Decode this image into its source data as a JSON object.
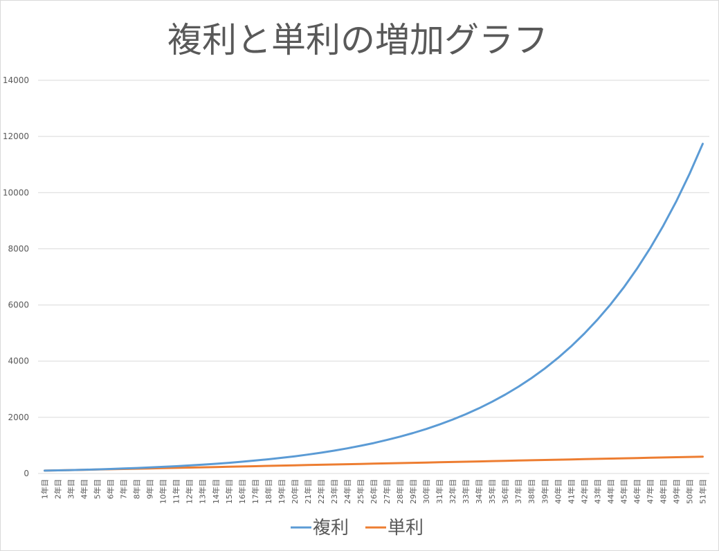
{
  "chart_data": {
    "type": "line",
    "title": "複利と単利の増加グラフ",
    "xlabel": "",
    "ylabel": "",
    "ylim": [
      0,
      14000
    ],
    "yticks": [
      0,
      2000,
      4000,
      6000,
      8000,
      10000,
      12000,
      14000
    ],
    "grid": true,
    "legend": "bottom",
    "categories": [
      "1年目",
      "2年目",
      "3年目",
      "4年目",
      "5年目",
      "6年目",
      "7年目",
      "8年目",
      "9年目",
      "10年目",
      "11年目",
      "12年目",
      "13年目",
      "14年目",
      "15年目",
      "16年目",
      "17年目",
      "18年目",
      "19年目",
      "20年目",
      "21年目",
      "22年目",
      "23年目",
      "24年目",
      "25年目",
      "26年目",
      "27年目",
      "28年目",
      "29年目",
      "30年目",
      "31年目",
      "32年目",
      "33年目",
      "34年目",
      "35年目",
      "36年目",
      "37年目",
      "38年目",
      "39年目",
      "40年目",
      "41年目",
      "42年目",
      "43年目",
      "44年目",
      "45年目",
      "46年目",
      "47年目",
      "48年目",
      "49年目",
      "50年目",
      "51年目"
    ],
    "series": [
      {
        "name": "複利",
        "color": "#5b9bd5",
        "values": [
          100,
          110,
          121,
          133,
          146,
          161,
          177,
          195,
          214,
          236,
          259,
          285,
          314,
          345,
          380,
          418,
          460,
          505,
          556,
          612,
          673,
          740,
          814,
          895,
          985,
          1083,
          1192,
          1311,
          1442,
          1586,
          1745,
          1919,
          2111,
          2323,
          2555,
          2810,
          3091,
          3400,
          3740,
          4114,
          4526,
          4979,
          5476,
          6024,
          6626,
          7289,
          8018,
          8820,
          9702,
          10672,
          11739
        ]
      },
      {
        "name": "単利",
        "color": "#ed7d31",
        "values": [
          100,
          110,
          120,
          130,
          140,
          150,
          160,
          170,
          180,
          190,
          200,
          210,
          220,
          230,
          240,
          250,
          260,
          270,
          280,
          290,
          300,
          310,
          320,
          330,
          340,
          350,
          360,
          370,
          380,
          390,
          400,
          410,
          420,
          430,
          440,
          450,
          460,
          470,
          480,
          490,
          500,
          510,
          520,
          530,
          540,
          550,
          560,
          570,
          580,
          590,
          600
        ]
      }
    ]
  }
}
